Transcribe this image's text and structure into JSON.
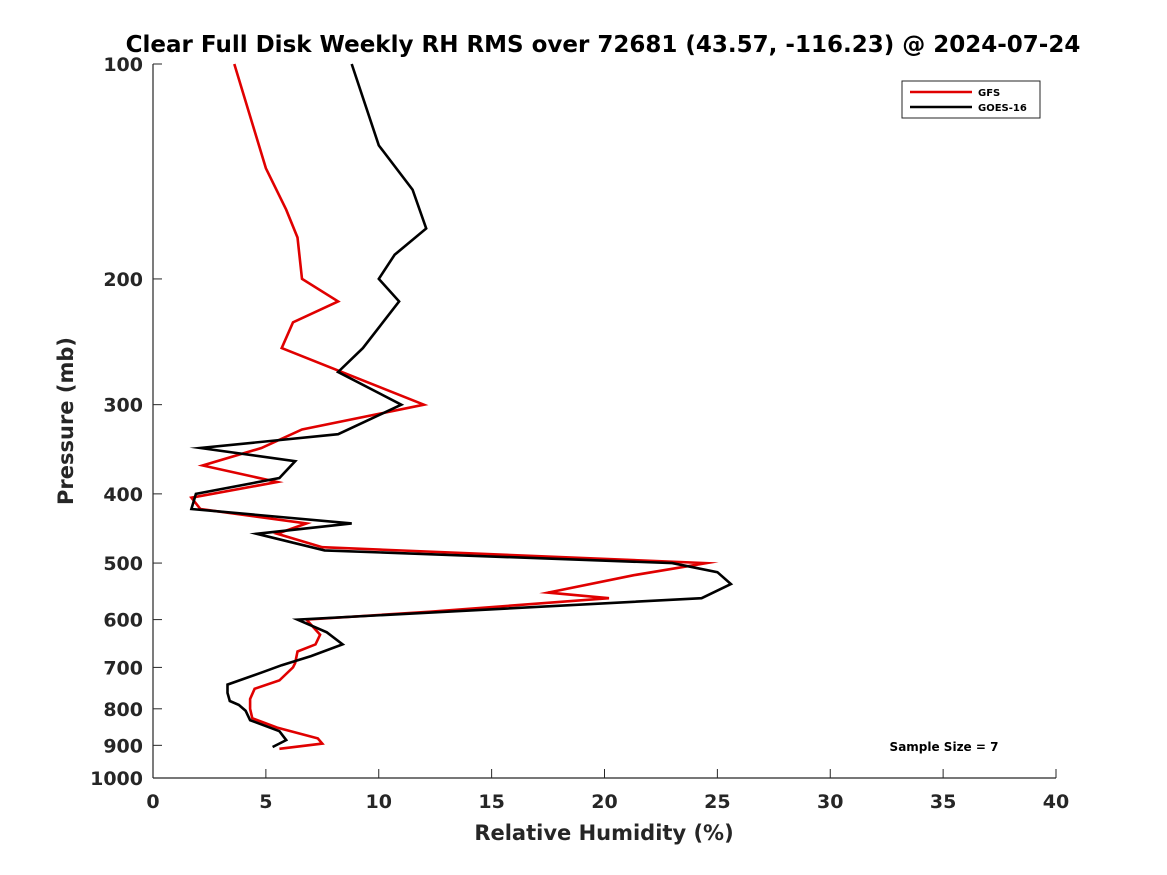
{
  "chart_data": {
    "type": "line",
    "title": "Clear Full Disk Weekly RH RMS over 72681 (43.57, -116.23) @ 2024-07-24",
    "xlabel": "Relative Humidity (%)",
    "ylabel": "Pressure (mb)",
    "xlim": [
      0,
      40
    ],
    "ylim": [
      100,
      1000
    ],
    "yscale": "log",
    "y_reversed": true,
    "xticks": [
      0,
      5,
      10,
      15,
      20,
      25,
      30,
      35,
      40
    ],
    "yticks": [
      100,
      200,
      300,
      400,
      500,
      600,
      700,
      800,
      900,
      1000
    ],
    "grid": false,
    "legend_position": "top-right",
    "annotation": "Sample Size = 7",
    "series": [
      {
        "name": "GFS",
        "color": "#e00000",
        "x": [
          3.6,
          5.0,
          5.9,
          6.4,
          6.6,
          8.2,
          6.2,
          5.7,
          12.0,
          6.6,
          4.8,
          2.2,
          5.5,
          1.7,
          2.1,
          6.8,
          5.5,
          7.5,
          24.5,
          21.3,
          17.5,
          20.2,
          12.3,
          6.8,
          7.4,
          7.2,
          6.4,
          6.3,
          6.2,
          5.6,
          4.5,
          4.3,
          4.3,
          4.4,
          5.5,
          7.3,
          7.5,
          5.6
        ],
        "y": [
          100,
          140,
          160,
          175,
          200,
          215,
          230,
          250,
          300,
          325,
          345,
          365,
          385,
          405,
          420,
          440,
          455,
          475,
          500,
          520,
          550,
          560,
          585,
          600,
          630,
          650,
          665,
          690,
          700,
          730,
          750,
          775,
          800,
          825,
          850,
          880,
          895,
          910
        ]
      },
      {
        "name": "GOES-16",
        "color": "#000000",
        "x": [
          8.8,
          10.0,
          11.5,
          12.1,
          10.7,
          10.0,
          10.9,
          9.3,
          8.2,
          11.0,
          8.2,
          2.1,
          6.3,
          5.6,
          1.9,
          1.7,
          8.8,
          4.6,
          7.6,
          23.0,
          25.0,
          25.6,
          24.3,
          6.4,
          7.7,
          8.4,
          7.0,
          5.7,
          4.9,
          3.3,
          3.3,
          3.4,
          3.8,
          4.1,
          4.3,
          5.6,
          5.9,
          5.3
        ],
        "y": [
          100,
          130,
          150,
          170,
          185,
          200,
          215,
          250,
          270,
          300,
          330,
          345,
          360,
          380,
          400,
          420,
          440,
          455,
          480,
          500,
          515,
          535,
          560,
          600,
          625,
          650,
          675,
          695,
          710,
          740,
          760,
          780,
          790,
          805,
          830,
          860,
          885,
          905
        ]
      }
    ]
  }
}
